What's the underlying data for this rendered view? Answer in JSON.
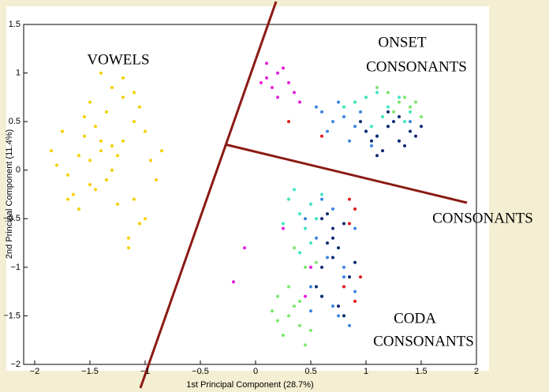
{
  "chart_data": {
    "type": "scatter",
    "xlabel": "1st Principal Component (28.7%)",
    "ylabel": "2nd Principal Component (11.4%)",
    "xlim": [
      -2.1,
      2
    ],
    "ylim": [
      -2,
      1.5
    ],
    "xticks": [
      {
        "value": -2,
        "label": "−2"
      },
      {
        "value": -1.5,
        "label": "−1.5"
      },
      {
        "value": -1,
        "label": "−1"
      },
      {
        "value": -0.5,
        "label": "−0.5"
      },
      0,
      0.5,
      1,
      1.5,
      2
    ],
    "yticks": [
      {
        "value": -2,
        "label": "−2"
      },
      {
        "value": -1.5,
        "label": "−1.5"
      },
      {
        "value": -1,
        "label": "−1"
      },
      {
        "value": -0.5,
        "label": "−0.5"
      },
      0,
      0.5,
      1,
      1.5
    ],
    "grid": false,
    "annotations": [
      "VOWELS",
      "ONSET",
      "CONSONANTS",
      "CONSONANTS",
      "CODA",
      "CONSONANTS"
    ],
    "series": [
      {
        "color": "#f5d000",
        "x": [
          -1.5,
          -1.4,
          -1.3,
          -1.6,
          -1.7,
          -1.2,
          -1.1,
          -1.45,
          -1.35,
          -1.55,
          -1.25,
          -1.0,
          -0.95,
          -1.8,
          -1.85,
          -1.65,
          -1.15,
          -1.05,
          -1.3,
          -1.4,
          -1.5,
          -1.2,
          -1.1,
          -1.0,
          -0.9,
          -1.6,
          -1.75,
          -1.35,
          -1.25,
          -1.45,
          -1.15,
          -1.05,
          -0.85,
          -1.5,
          -1.3,
          -1.7,
          -1.55,
          -1.2,
          -1.1,
          -1.4
        ],
        "y": [
          0.1,
          0.2,
          0.0,
          0.15,
          -0.05,
          0.3,
          0.5,
          -0.2,
          0.6,
          0.35,
          -0.35,
          -0.5,
          0.1,
          0.05,
          0.2,
          -0.25,
          -0.7,
          -0.55,
          0.85,
          1.0,
          0.7,
          0.95,
          0.8,
          0.4,
          -0.1,
          -0.4,
          0.4,
          -0.1,
          0.15,
          0.45,
          -0.8,
          0.65,
          0.2,
          -0.15,
          0.25,
          -0.3,
          0.55,
          0.75,
          -0.3,
          0.3
        ]
      },
      {
        "color": "#e81ee0",
        "x": [
          0.1,
          0.2,
          0.3,
          0.15,
          0.25,
          0.05,
          0.35,
          0.2,
          0.4,
          0.1,
          0.5,
          -0.1,
          0.25,
          0.45,
          -0.2
        ],
        "y": [
          0.95,
          1.0,
          0.9,
          0.85,
          1.05,
          0.9,
          0.8,
          0.75,
          0.7,
          1.1,
          -1.0,
          -0.8,
          -0.6,
          -1.3,
          -1.15
        ]
      },
      {
        "color": "#3a86e0",
        "x": [
          0.6,
          0.7,
          0.8,
          0.9,
          1.0,
          1.1,
          0.75,
          0.85,
          0.95,
          1.05,
          1.2,
          1.3,
          0.65,
          0.55,
          1.4,
          0.5,
          0.6,
          0.7,
          0.8,
          0.9,
          0.45,
          0.55,
          0.65,
          0.75,
          0.85,
          0.6,
          0.7,
          0.8,
          0.5,
          0.9
        ],
        "y": [
          0.6,
          0.5,
          0.55,
          0.45,
          0.4,
          0.35,
          0.7,
          0.3,
          0.6,
          0.25,
          0.45,
          0.3,
          0.4,
          0.65,
          0.5,
          -1.2,
          -1.3,
          -1.4,
          -1.1,
          -1.25,
          -0.5,
          -0.7,
          -0.9,
          -1.5,
          -1.6,
          -0.3,
          -0.4,
          -1.0,
          -1.45,
          -0.6
        ]
      },
      {
        "color": "#0b2a70",
        "x": [
          1.0,
          1.1,
          1.2,
          1.3,
          1.4,
          1.15,
          1.25,
          1.35,
          1.05,
          0.95,
          1.45,
          1.2,
          1.3,
          1.1,
          1.5,
          0.6,
          0.7,
          0.65,
          0.75,
          0.7,
          0.8,
          0.6,
          0.55,
          0.75,
          0.85,
          0.7,
          0.65,
          0.8,
          0.9,
          0.6
        ],
        "y": [
          0.4,
          0.35,
          0.45,
          0.3,
          0.4,
          0.2,
          0.5,
          0.25,
          0.3,
          0.5,
          0.35,
          0.6,
          0.55,
          0.15,
          0.45,
          -0.5,
          -0.6,
          -0.75,
          -0.8,
          -0.9,
          -0.55,
          -1.3,
          -1.2,
          -1.4,
          -1.1,
          -0.7,
          -0.45,
          -1.5,
          -0.95,
          -1.0
        ]
      },
      {
        "color": "#7ae86a",
        "x": [
          1.0,
          1.2,
          1.3,
          1.4,
          1.5,
          0.9,
          1.1,
          1.35,
          1.25,
          1.45,
          0.2,
          0.3,
          0.4,
          0.25,
          0.35,
          0.45,
          0.3,
          0.4,
          0.5,
          0.2,
          0.35,
          0.55,
          0.3,
          0.15,
          0.45
        ],
        "y": [
          0.75,
          0.8,
          0.7,
          0.65,
          0.55,
          0.7,
          0.85,
          0.75,
          0.6,
          0.7,
          -1.3,
          -1.5,
          -1.6,
          -1.7,
          -1.4,
          -1.8,
          -1.2,
          -1.35,
          -1.65,
          -1.55,
          -0.8,
          -0.95,
          -0.3,
          -1.45,
          -1.0
        ]
      },
      {
        "color": "#3ee6c0",
        "x": [
          0.3,
          0.4,
          0.5,
          0.45,
          0.35,
          0.55,
          0.6,
          0.25,
          0.5,
          0.4,
          0.9,
          1.0,
          1.1,
          1.2,
          1.3,
          1.4,
          0.8,
          1.15,
          1.35,
          1.05
        ],
        "y": [
          -0.3,
          -0.45,
          -0.35,
          -0.6,
          -0.2,
          -0.5,
          -0.25,
          -0.55,
          -0.75,
          -0.85,
          0.7,
          0.75,
          0.8,
          0.65,
          0.75,
          0.6,
          0.65,
          0.55,
          0.5,
          0.45
        ]
      },
      {
        "color": "#e01818",
        "x": [
          0.85,
          0.9,
          0.8,
          0.95,
          0.9,
          0.85,
          0.6,
          0.3
        ],
        "y": [
          -0.3,
          -0.4,
          -1.2,
          -1.1,
          -1.35,
          -0.55,
          0.35,
          0.5
        ]
      }
    ]
  }
}
